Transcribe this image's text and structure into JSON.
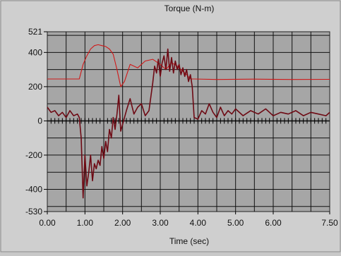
{
  "chart_data": {
    "type": "line",
    "title": "Torque (N-m)",
    "xlabel": "Time (sec)",
    "ylabel": "",
    "xlim": [
      0,
      7.5
    ],
    "ylim": [
      -530,
      521
    ],
    "x_ticks": [
      0,
      1,
      2,
      3,
      4,
      5,
      6,
      7.5
    ],
    "x_tick_labels": [
      "0.00",
      "1.00",
      "2.00",
      "3.00",
      "4.00",
      "5.00",
      "6.00",
      "7.50"
    ],
    "y_ticks": [
      521,
      400,
      200,
      0,
      -200,
      -400,
      -530
    ],
    "y_tick_labels": [
      "521",
      "400",
      "200",
      "0",
      "-200",
      "-400",
      "-530"
    ],
    "grid": true,
    "colors": {
      "plot_bg": "#a6a6a6",
      "grid": "#111111",
      "series_bright": "#d01818",
      "series_dark": "#6e0a14"
    },
    "series": [
      {
        "x": [
          0,
          0.85,
          0.95,
          1.05,
          1.15,
          1.25,
          1.35,
          1.45,
          1.55,
          1.65,
          1.75,
          1.85,
          1.95,
          2.05,
          2.2,
          2.4,
          2.6,
          2.8,
          3.0,
          3.15,
          3.3,
          3.45,
          3.6,
          3.7,
          3.78,
          3.82,
          3.9,
          4.5,
          5.5,
          6.5,
          7.5
        ],
        "y": [
          245,
          245,
          330,
          380,
          420,
          440,
          445,
          440,
          435,
          420,
          390,
          300,
          200,
          230,
          330,
          310,
          350,
          360,
          330,
          300,
          340,
          320,
          290,
          270,
          250,
          245,
          245,
          242,
          244,
          242,
          243
        ]
      },
      {
        "x": [
          0,
          0.1,
          0.2,
          0.3,
          0.4,
          0.5,
          0.6,
          0.7,
          0.8,
          0.85,
          0.9,
          0.95,
          1.0,
          1.05,
          1.1,
          1.15,
          1.2,
          1.25,
          1.3,
          1.35,
          1.4,
          1.45,
          1.5,
          1.55,
          1.6,
          1.65,
          1.7,
          1.75,
          1.8,
          1.85,
          1.9,
          1.95,
          2.0,
          2.1,
          2.2,
          2.3,
          2.4,
          2.5,
          2.6,
          2.7,
          2.8,
          2.85,
          2.9,
          2.95,
          3.0,
          3.05,
          3.1,
          3.15,
          3.2,
          3.25,
          3.3,
          3.35,
          3.4,
          3.45,
          3.5,
          3.55,
          3.6,
          3.65,
          3.7,
          3.75,
          3.8,
          3.85,
          3.9,
          4.0,
          4.1,
          4.2,
          4.3,
          4.4,
          4.5,
          4.6,
          4.7,
          4.8,
          4.9,
          5.0,
          5.2,
          5.4,
          5.6,
          5.8,
          6.0,
          6.2,
          6.4,
          6.6,
          6.8,
          7.0,
          7.2,
          7.4,
          7.5
        ],
        "y": [
          80,
          50,
          60,
          30,
          50,
          20,
          60,
          30,
          40,
          20,
          -100,
          -450,
          -200,
          -380,
          -300,
          -200,
          -350,
          -250,
          -280,
          -230,
          -260,
          -150,
          -220,
          -120,
          -180,
          -50,
          -100,
          20,
          -50,
          40,
          150,
          -60,
          -20,
          60,
          130,
          40,
          80,
          100,
          30,
          60,
          220,
          320,
          280,
          360,
          260,
          340,
          380,
          300,
          420,
          290,
          370,
          280,
          350,
          300,
          330,
          270,
          310,
          260,
          300,
          230,
          270,
          200,
          20,
          10,
          60,
          40,
          100,
          50,
          20,
          80,
          30,
          60,
          40,
          70,
          30,
          60,
          40,
          70,
          30,
          50,
          40,
          60,
          30,
          50,
          40,
          30,
          50
        ]
      }
    ]
  }
}
